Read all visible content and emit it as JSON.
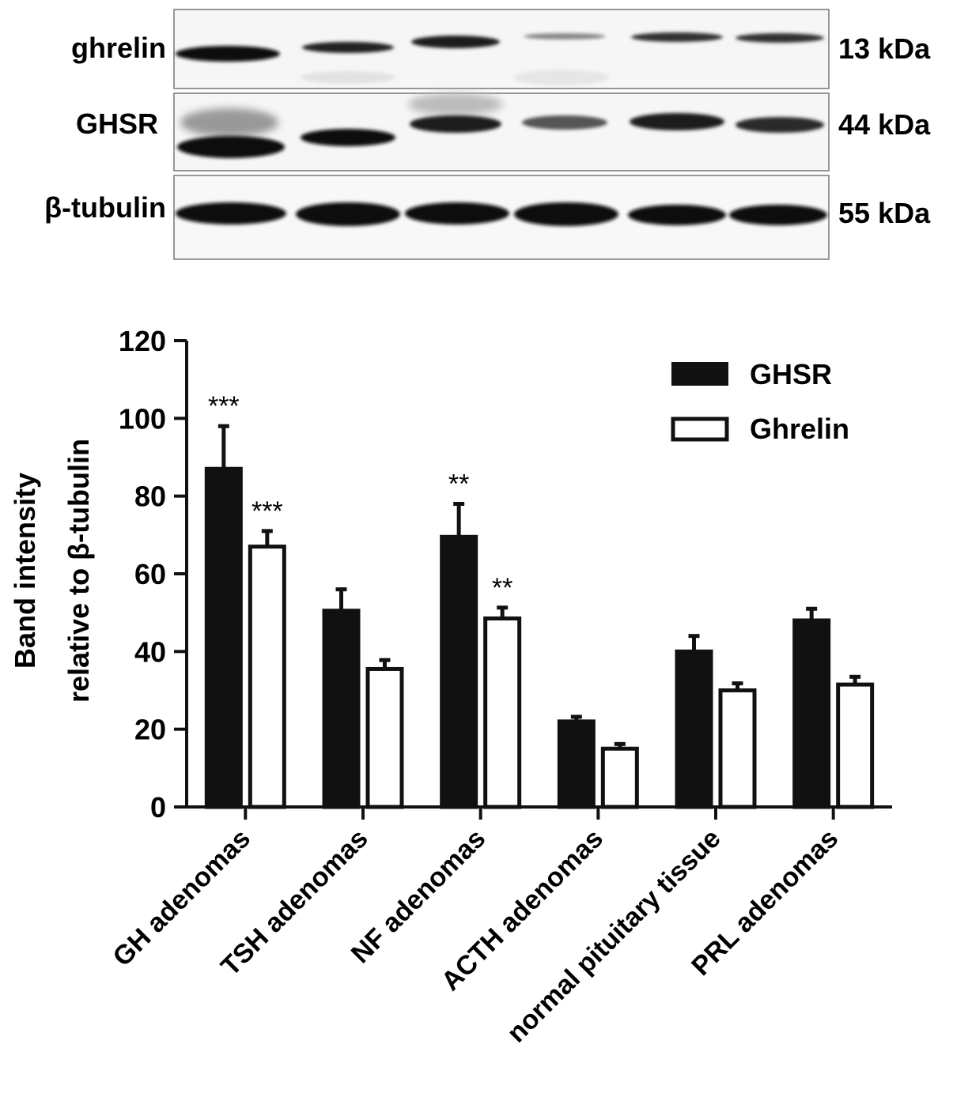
{
  "blot": {
    "rows": [
      {
        "label": "ghrelin",
        "kda": "13 kDa"
      },
      {
        "label": "GHSR",
        "kda": "44 kDa"
      },
      {
        "label": "β-tubulin",
        "kda": "55 kDa"
      }
    ]
  },
  "chart_data": {
    "type": "bar",
    "ylabel_line1": "Band intensity",
    "ylabel_line2": "relative to β-tubulin",
    "ylim": [
      0,
      120
    ],
    "yticks": [
      0,
      20,
      40,
      60,
      80,
      100,
      120
    ],
    "categories": [
      "GH adenomas",
      "TSH adenomas",
      "NF adenomas",
      "ACTH adenomas",
      "normal pituitary tissue",
      "PRL adenomas"
    ],
    "series": [
      {
        "name": "GHSR",
        "fill": "#111111",
        "values": [
          87,
          50.5,
          69.5,
          22,
          40,
          48
        ],
        "errors": [
          11,
          5.5,
          8.5,
          1.2,
          4,
          3
        ],
        "annotations": [
          "***",
          "",
          "**",
          "",
          "",
          ""
        ]
      },
      {
        "name": "Ghrelin",
        "fill": "#ffffff",
        "values": [
          67,
          35.5,
          48.5,
          15,
          30,
          31.5
        ],
        "errors": [
          4,
          2.3,
          2.8,
          1.2,
          1.8,
          2
        ],
        "annotations": [
          "***",
          "",
          "**",
          "",
          "",
          ""
        ]
      }
    ],
    "legend_position": "top-right",
    "grid": false
  }
}
